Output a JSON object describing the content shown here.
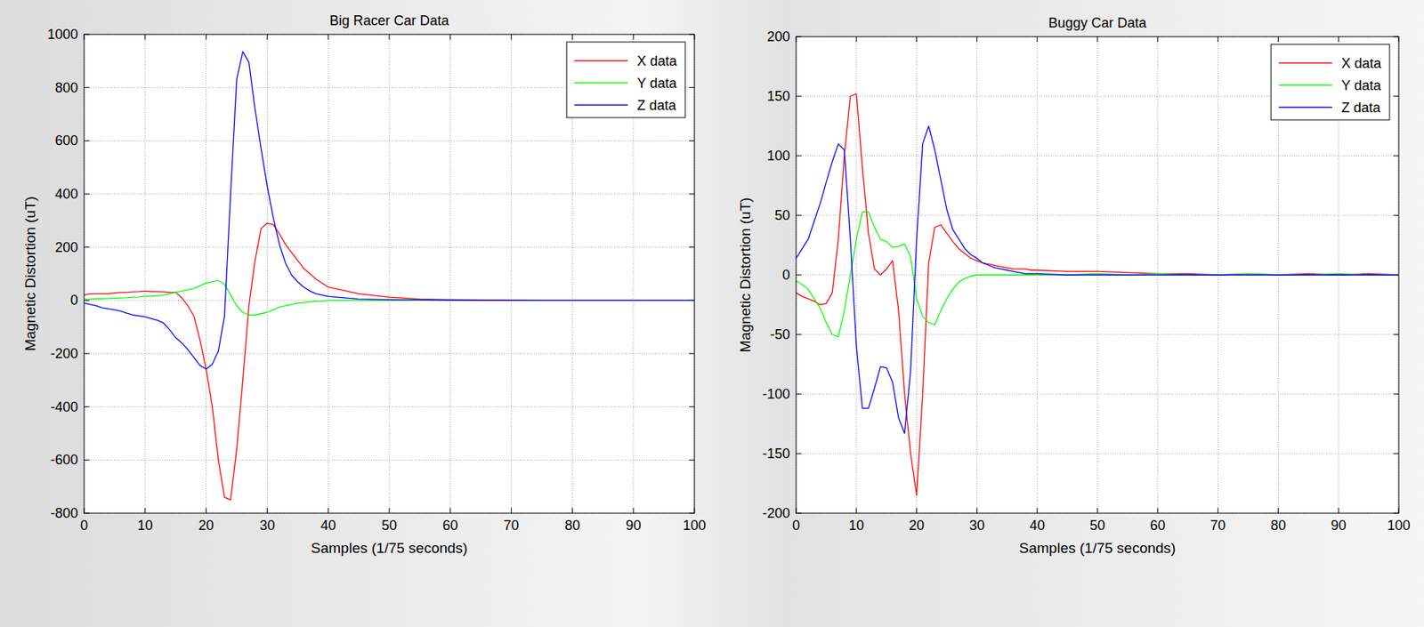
{
  "chart_data": [
    {
      "type": "line",
      "title": "Big Racer Car Data",
      "x_label": "Samples (1/75 seconds)",
      "y_label": "Magnetic Distortion (uT)",
      "x": [
        0,
        1,
        2,
        3,
        4,
        5,
        6,
        7,
        8,
        9,
        10,
        11,
        12,
        13,
        14,
        15,
        16,
        17,
        18,
        19,
        20,
        21,
        22,
        23,
        24,
        25,
        26,
        27,
        28,
        29,
        30,
        31,
        32,
        33,
        34,
        35,
        36,
        37,
        38,
        39,
        40,
        45,
        50,
        55,
        60,
        65,
        70,
        75,
        80,
        85,
        90,
        95,
        100
      ],
      "series": [
        {
          "name": "X data",
          "color": "#ff0000",
          "values": [
            20,
            25,
            25,
            25,
            25,
            28,
            30,
            30,
            32,
            33,
            35,
            33,
            33,
            32,
            30,
            30,
            10,
            -20,
            -60,
            -150,
            -260,
            -400,
            -600,
            -740,
            -750,
            -560,
            -300,
            -20,
            150,
            270,
            290,
            285,
            250,
            210,
            180,
            150,
            120,
            100,
            80,
            65,
            50,
            25,
            12,
            5,
            3,
            2,
            1,
            0,
            0,
            0,
            0,
            0,
            0
          ]
        },
        {
          "name": "Y data",
          "color": "#00ff00",
          "values": [
            5,
            5,
            6,
            6,
            7,
            8,
            9,
            10,
            12,
            13,
            15,
            16,
            18,
            20,
            25,
            30,
            35,
            40,
            45,
            55,
            65,
            70,
            75,
            60,
            20,
            -20,
            -45,
            -55,
            -55,
            -50,
            -45,
            -35,
            -25,
            -20,
            -15,
            -10,
            -8,
            -5,
            -3,
            -2,
            0,
            0,
            0,
            0,
            0,
            0,
            0,
            0,
            0,
            0,
            0,
            0,
            0
          ]
        },
        {
          "name": "Z data",
          "color": "#0000ff",
          "values": [
            -10,
            -15,
            -20,
            -28,
            -32,
            -35,
            -40,
            -48,
            -55,
            -58,
            -62,
            -68,
            -75,
            -85,
            -110,
            -140,
            -160,
            -185,
            -215,
            -245,
            -258,
            -240,
            -190,
            -60,
            400,
            830,
            935,
            895,
            720,
            570,
            430,
            310,
            210,
            140,
            95,
            70,
            50,
            35,
            25,
            20,
            15,
            5,
            3,
            2,
            1,
            0,
            0,
            0,
            0,
            0,
            0,
            0,
            0
          ]
        }
      ],
      "xlim": [
        0,
        100
      ],
      "ylim": [
        -800,
        1000
      ],
      "xticks": [
        0,
        10,
        20,
        30,
        40,
        50,
        60,
        70,
        80,
        90,
        100
      ],
      "yticks": [
        -800,
        -600,
        -400,
        -200,
        0,
        200,
        400,
        600,
        800,
        1000
      ],
      "grid": true,
      "legend": "upper right"
    },
    {
      "type": "line",
      "title": "Buggy Car Data",
      "x_label": "Samples (1/75 seconds)",
      "y_label": "Magnetic Distortion (uT)",
      "x": [
        0,
        1,
        2,
        3,
        4,
        5,
        6,
        7,
        8,
        9,
        10,
        11,
        12,
        13,
        14,
        15,
        16,
        17,
        18,
        19,
        20,
        21,
        22,
        23,
        24,
        25,
        26,
        27,
        28,
        29,
        30,
        31,
        32,
        33,
        34,
        35,
        36,
        37,
        38,
        39,
        40,
        45,
        50,
        55,
        60,
        65,
        70,
        75,
        80,
        85,
        90,
        95,
        100
      ],
      "series": [
        {
          "name": "X data",
          "color": "#ff0000",
          "values": [
            -15,
            -18,
            -20,
            -22,
            -25,
            -24,
            -15,
            30,
            100,
            150,
            152,
            90,
            35,
            5,
            0,
            5,
            12,
            -30,
            -100,
            -150,
            -185,
            -100,
            10,
            40,
            42,
            35,
            28,
            22,
            18,
            14,
            12,
            10,
            9,
            8,
            7,
            6,
            5,
            5,
            5,
            4,
            4,
            3,
            3,
            2,
            1,
            1,
            0,
            1,
            0,
            1,
            0,
            1,
            0
          ]
        },
        {
          "name": "Y data",
          "color": "#00ff00",
          "values": [
            -5,
            -8,
            -12,
            -20,
            -28,
            -40,
            -50,
            -52,
            -30,
            0,
            30,
            53,
            53,
            40,
            30,
            28,
            23,
            24,
            26,
            15,
            -20,
            -35,
            -40,
            -42,
            -30,
            -20,
            -12,
            -6,
            -3,
            -1,
            0,
            0,
            0,
            0,
            0,
            0,
            0,
            0,
            0,
            0,
            0,
            0,
            1,
            0,
            1,
            0,
            0,
            1,
            0,
            0,
            1,
            0,
            0
          ]
        },
        {
          "name": "Z data",
          "color": "#0000ff",
          "values": [
            14,
            22,
            30,
            45,
            60,
            78,
            95,
            110,
            105,
            30,
            -60,
            -112,
            -112,
            -95,
            -77,
            -78,
            -90,
            -120,
            -133,
            -80,
            30,
            110,
            125,
            105,
            80,
            55,
            38,
            30,
            22,
            17,
            14,
            10,
            8,
            6,
            5,
            4,
            3,
            2,
            1,
            1,
            1,
            0,
            0,
            0,
            0,
            0,
            0,
            0,
            0,
            0,
            0,
            0,
            0
          ]
        }
      ],
      "xlim": [
        0,
        100
      ],
      "ylim": [
        -200,
        200
      ],
      "xticks": [
        0,
        10,
        20,
        30,
        40,
        50,
        60,
        70,
        80,
        90,
        100
      ],
      "yticks": [
        -200,
        -150,
        -100,
        -50,
        0,
        50,
        100,
        150,
        200
      ],
      "grid": true,
      "legend": "upper right"
    }
  ]
}
